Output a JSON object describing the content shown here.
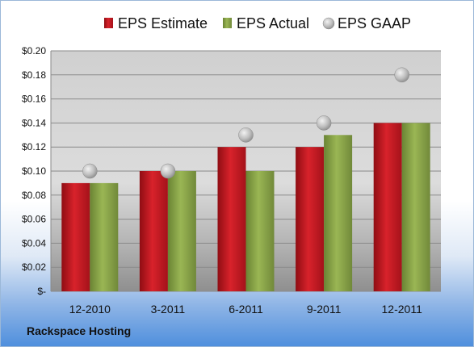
{
  "chart_data": {
    "type": "bar",
    "categories": [
      "12-2010",
      "3-2011",
      "6-2011",
      "9-2011",
      "12-2011"
    ],
    "series": [
      {
        "name": "EPS Estimate",
        "kind": "bar",
        "color": "#c0161f",
        "values": [
          0.09,
          0.1,
          0.12,
          0.12,
          0.14
        ]
      },
      {
        "name": "EPS Actual",
        "kind": "bar",
        "color": "#8aa444",
        "values": [
          0.09,
          0.1,
          0.1,
          0.13,
          0.14
        ]
      },
      {
        "name": "EPS GAAP",
        "kind": "marker",
        "color": "#b8b8b8",
        "values": [
          0.1,
          0.1,
          0.13,
          0.14,
          0.18
        ]
      }
    ],
    "ylim": [
      0,
      0.2
    ],
    "yticks": [
      0,
      0.02,
      0.04,
      0.06,
      0.08,
      0.1,
      0.12,
      0.14,
      0.16,
      0.18,
      0.2
    ],
    "ytick_labels": [
      "$-",
      "$0.02",
      "$0.04",
      "$0.06",
      "$0.08",
      "$0.10",
      "$0.12",
      "$0.14",
      "$0.16",
      "$0.18",
      "$0.20"
    ],
    "grid": true,
    "legend_position": "top"
  },
  "company": "Rackspace Hosting"
}
